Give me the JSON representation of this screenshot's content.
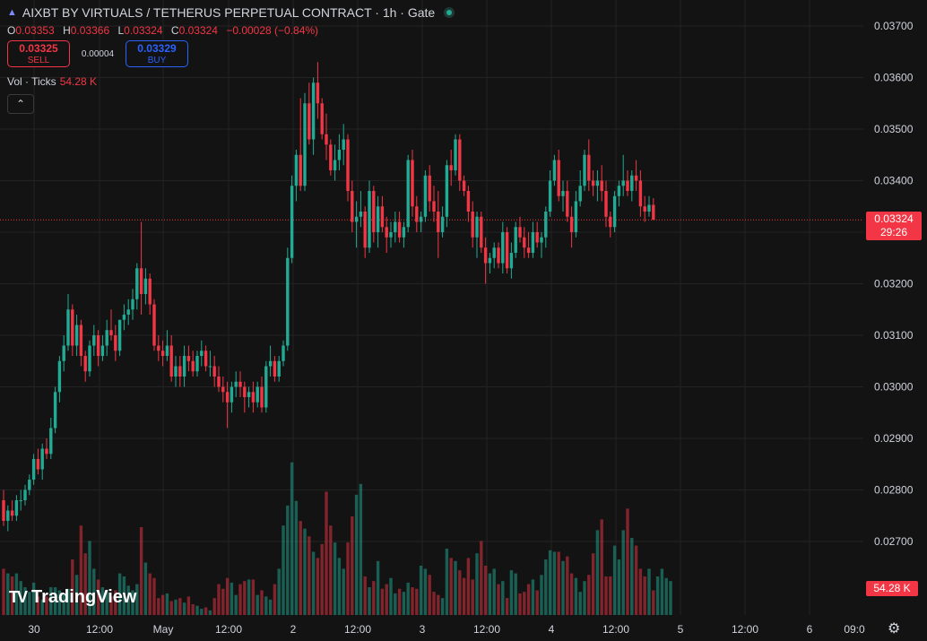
{
  "header": {
    "symbol_title": "AIXBT BY VIRTUALS / TETHERUS PERPETUAL CONTRACT · 1h · Gate",
    "ohlc": {
      "o_label": "O",
      "o": "0.03353",
      "h_label": "H",
      "h": "0.03366",
      "l_label": "L",
      "l": "0.03324",
      "c_label": "C",
      "c": "0.03324",
      "change": "−0.00028 (−0.84%)"
    },
    "sell_price": "0.03325",
    "sell_label": "SELL",
    "spread": "0.00004",
    "buy_price": "0.03329",
    "buy_label": "BUY",
    "volume_label": "Vol · Ticks",
    "volume_value": "54.28 K"
  },
  "price_badge": {
    "price": "0.03324",
    "countdown": "29:26"
  },
  "volume_badge": "54.28 K",
  "watermark": {
    "logo": "TV",
    "text": "TradingView"
  },
  "colors": {
    "up": "#22ab94",
    "down": "#f23645",
    "background": "#131313",
    "grid": "#232323",
    "current_line": "#f23645"
  },
  "icons": {
    "status": "live-dot-icon",
    "collapse": "chevron-up-icon",
    "settings": "gear-icon"
  },
  "chart_data": {
    "type": "candlestick",
    "y_axis": {
      "min": 0.0266,
      "max": 0.0371,
      "ticks": [
        "0.03700",
        "0.03600",
        "0.03500",
        "0.03400",
        "0.03300",
        "0.03200",
        "0.03100",
        "0.03000",
        "0.02900",
        "0.02800",
        "0.02700"
      ]
    },
    "x_axis": {
      "ticks": [
        "30",
        "12:00",
        "May",
        "12:00",
        "2",
        "12:00",
        "3",
        "12:00",
        "4",
        "12:00",
        "5",
        "12:00",
        "6",
        "09:0"
      ]
    },
    "current_price": 0.03324,
    "candles_ohlc": [
      [
        0.0278,
        0.028,
        0.0273,
        0.0274
      ],
      [
        0.0274,
        0.0277,
        0.0272,
        0.0276
      ],
      [
        0.0276,
        0.0278,
        0.0274,
        0.0275
      ],
      [
        0.0275,
        0.0279,
        0.0274,
        0.0278
      ],
      [
        0.0278,
        0.028,
        0.0276,
        0.0278
      ],
      [
        0.0278,
        0.0281,
        0.0277,
        0.028
      ],
      [
        0.028,
        0.0283,
        0.0279,
        0.0282
      ],
      [
        0.0282,
        0.0287,
        0.0281,
        0.0286
      ],
      [
        0.0286,
        0.0288,
        0.0283,
        0.0284
      ],
      [
        0.0284,
        0.0289,
        0.0282,
        0.0288
      ],
      [
        0.0288,
        0.029,
        0.0286,
        0.0287
      ],
      [
        0.0287,
        0.0294,
        0.0286,
        0.0292
      ],
      [
        0.0292,
        0.03,
        0.0291,
        0.0299
      ],
      [
        0.0299,
        0.0306,
        0.0297,
        0.0305
      ],
      [
        0.0305,
        0.031,
        0.0303,
        0.0308
      ],
      [
        0.0308,
        0.0318,
        0.0307,
        0.0315
      ],
      [
        0.0315,
        0.0316,
        0.0306,
        0.0308
      ],
      [
        0.0308,
        0.0314,
        0.0306,
        0.0312
      ],
      [
        0.0312,
        0.0313,
        0.0304,
        0.0306
      ],
      [
        0.0306,
        0.0307,
        0.0301,
        0.0303
      ],
      [
        0.0303,
        0.0309,
        0.0302,
        0.0308
      ],
      [
        0.0308,
        0.0312,
        0.0306,
        0.031
      ],
      [
        0.031,
        0.0311,
        0.0304,
        0.0306
      ],
      [
        0.0306,
        0.031,
        0.0305,
        0.0308
      ],
      [
        0.0308,
        0.0313,
        0.0306,
        0.0311
      ],
      [
        0.0311,
        0.0315,
        0.0309,
        0.031
      ],
      [
        0.031,
        0.0312,
        0.0305,
        0.0307
      ],
      [
        0.0307,
        0.0313,
        0.0306,
        0.0313
      ],
      [
        0.0313,
        0.0316,
        0.0311,
        0.0314
      ],
      [
        0.0314,
        0.0317,
        0.0312,
        0.0315
      ],
      [
        0.0315,
        0.0319,
        0.0313,
        0.0317
      ],
      [
        0.0317,
        0.0324,
        0.0315,
        0.0323
      ],
      [
        0.0323,
        0.0332,
        0.0314,
        0.0318
      ],
      [
        0.0318,
        0.0323,
        0.0316,
        0.0321
      ],
      [
        0.0321,
        0.0322,
        0.0314,
        0.0316
      ],
      [
        0.0316,
        0.0317,
        0.0307,
        0.0308
      ],
      [
        0.0308,
        0.031,
        0.0305,
        0.0307
      ],
      [
        0.0307,
        0.0309,
        0.0304,
        0.0306
      ],
      [
        0.0306,
        0.0311,
        0.0305,
        0.0308
      ],
      [
        0.0308,
        0.031,
        0.0301,
        0.0302
      ],
      [
        0.0302,
        0.0306,
        0.03,
        0.0304
      ],
      [
        0.0304,
        0.0306,
        0.03,
        0.0302
      ],
      [
        0.0302,
        0.0308,
        0.03,
        0.0306
      ],
      [
        0.0306,
        0.0308,
        0.0303,
        0.0305
      ],
      [
        0.0305,
        0.0307,
        0.0302,
        0.0303
      ],
      [
        0.0303,
        0.0307,
        0.0302,
        0.0306
      ],
      [
        0.0306,
        0.0309,
        0.0304,
        0.0307
      ],
      [
        0.0307,
        0.0308,
        0.0303,
        0.0304
      ],
      [
        0.0304,
        0.0307,
        0.0302,
        0.0304
      ],
      [
        0.0304,
        0.0306,
        0.03,
        0.0302
      ],
      [
        0.0302,
        0.0304,
        0.0299,
        0.03
      ],
      [
        0.03,
        0.0302,
        0.0297,
        0.0299
      ],
      [
        0.0299,
        0.0301,
        0.0292,
        0.0297
      ],
      [
        0.0297,
        0.0301,
        0.0295,
        0.03
      ],
      [
        0.03,
        0.0303,
        0.0298,
        0.0301
      ],
      [
        0.0301,
        0.0303,
        0.0298,
        0.03
      ],
      [
        0.03,
        0.0301,
        0.0295,
        0.0298
      ],
      [
        0.0298,
        0.03,
        0.0296,
        0.0299
      ],
      [
        0.0299,
        0.0301,
        0.0295,
        0.0297
      ],
      [
        0.0297,
        0.0301,
        0.0296,
        0.03
      ],
      [
        0.03,
        0.0302,
        0.0295,
        0.0296
      ],
      [
        0.0296,
        0.0305,
        0.0295,
        0.0304
      ],
      [
        0.0304,
        0.0308,
        0.0302,
        0.0305
      ],
      [
        0.0305,
        0.0306,
        0.0301,
        0.0302
      ],
      [
        0.0302,
        0.0306,
        0.0301,
        0.0305
      ],
      [
        0.0305,
        0.0309,
        0.0304,
        0.0308
      ],
      [
        0.0308,
        0.0327,
        0.0307,
        0.0325
      ],
      [
        0.0325,
        0.0341,
        0.0324,
        0.0339
      ],
      [
        0.0339,
        0.0346,
        0.0336,
        0.0345
      ],
      [
        0.0345,
        0.0356,
        0.0338,
        0.0339
      ],
      [
        0.0339,
        0.0357,
        0.0338,
        0.0355
      ],
      [
        0.0355,
        0.0359,
        0.0347,
        0.0348
      ],
      [
        0.0348,
        0.036,
        0.0345,
        0.0359
      ],
      [
        0.0359,
        0.0363,
        0.0352,
        0.0355
      ],
      [
        0.0355,
        0.0356,
        0.0348,
        0.0349
      ],
      [
        0.0349,
        0.0353,
        0.0344,
        0.0347
      ],
      [
        0.0347,
        0.0348,
        0.0341,
        0.0342
      ],
      [
        0.0342,
        0.0347,
        0.034,
        0.0344
      ],
      [
        0.0344,
        0.0349,
        0.0342,
        0.0346
      ],
      [
        0.0346,
        0.0351,
        0.0343,
        0.0348
      ],
      [
        0.0348,
        0.0349,
        0.0336,
        0.0338
      ],
      [
        0.0338,
        0.034,
        0.033,
        0.0332
      ],
      [
        0.0332,
        0.0336,
        0.0327,
        0.0333
      ],
      [
        0.0333,
        0.0338,
        0.0331,
        0.0334
      ],
      [
        0.0334,
        0.0335,
        0.0325,
        0.0327
      ],
      [
        0.0327,
        0.034,
        0.0326,
        0.0338
      ],
      [
        0.0338,
        0.0339,
        0.0328,
        0.033
      ],
      [
        0.033,
        0.0337,
        0.0327,
        0.0335
      ],
      [
        0.0335,
        0.0337,
        0.033,
        0.0331
      ],
      [
        0.0331,
        0.0333,
        0.0326,
        0.0329
      ],
      [
        0.0329,
        0.0332,
        0.0327,
        0.033
      ],
      [
        0.033,
        0.0334,
        0.0328,
        0.0332
      ],
      [
        0.0332,
        0.0334,
        0.0328,
        0.0329
      ],
      [
        0.0329,
        0.0332,
        0.0327,
        0.0331
      ],
      [
        0.0331,
        0.0345,
        0.033,
        0.0344
      ],
      [
        0.0344,
        0.0346,
        0.0333,
        0.0335
      ],
      [
        0.0335,
        0.0337,
        0.033,
        0.0332
      ],
      [
        0.0332,
        0.0334,
        0.033,
        0.0333
      ],
      [
        0.0333,
        0.0342,
        0.0332,
        0.0341
      ],
      [
        0.0341,
        0.0343,
        0.0334,
        0.0336
      ],
      [
        0.0336,
        0.0339,
        0.0332,
        0.0334
      ],
      [
        0.0334,
        0.0338,
        0.0325,
        0.033
      ],
      [
        0.033,
        0.0335,
        0.0329,
        0.0333
      ],
      [
        0.0333,
        0.0344,
        0.0331,
        0.0343
      ],
      [
        0.0343,
        0.0346,
        0.0339,
        0.0342
      ],
      [
        0.0342,
        0.0349,
        0.0341,
        0.0348
      ],
      [
        0.0348,
        0.0349,
        0.0338,
        0.034
      ],
      [
        0.034,
        0.0341,
        0.0337,
        0.0338
      ],
      [
        0.0338,
        0.0339,
        0.0332,
        0.0334
      ],
      [
        0.0334,
        0.0336,
        0.0327,
        0.0329
      ],
      [
        0.0329,
        0.0334,
        0.0325,
        0.0333
      ],
      [
        0.0333,
        0.0334,
        0.0326,
        0.0327
      ],
      [
        0.0327,
        0.0329,
        0.032,
        0.0324
      ],
      [
        0.0324,
        0.0326,
        0.0322,
        0.0325
      ],
      [
        0.0325,
        0.0328,
        0.0323,
        0.0327
      ],
      [
        0.0327,
        0.0328,
        0.0323,
        0.0324
      ],
      [
        0.0324,
        0.0332,
        0.0322,
        0.033
      ],
      [
        0.033,
        0.0331,
        0.0322,
        0.0323
      ],
      [
        0.0323,
        0.0328,
        0.0321,
        0.0326
      ],
      [
        0.0326,
        0.0332,
        0.0325,
        0.0331
      ],
      [
        0.0331,
        0.0333,
        0.0328,
        0.0329
      ],
      [
        0.0329,
        0.0331,
        0.0325,
        0.0327
      ],
      [
        0.0327,
        0.033,
        0.0325,
        0.0326
      ],
      [
        0.0326,
        0.0332,
        0.0325,
        0.033
      ],
      [
        0.033,
        0.0332,
        0.0327,
        0.0328
      ],
      [
        0.0328,
        0.033,
        0.0325,
        0.0329
      ],
      [
        0.0329,
        0.0335,
        0.0327,
        0.0334
      ],
      [
        0.0334,
        0.0342,
        0.0333,
        0.034
      ],
      [
        0.034,
        0.0345,
        0.0339,
        0.0344
      ],
      [
        0.0344,
        0.0346,
        0.0336,
        0.0337
      ],
      [
        0.0337,
        0.034,
        0.0334,
        0.0338
      ],
      [
        0.0338,
        0.034,
        0.0332,
        0.0333
      ],
      [
        0.0333,
        0.0335,
        0.0327,
        0.033
      ],
      [
        0.033,
        0.0338,
        0.0329,
        0.0336
      ],
      [
        0.0336,
        0.0342,
        0.0335,
        0.0339
      ],
      [
        0.0339,
        0.0346,
        0.0338,
        0.0345
      ],
      [
        0.0345,
        0.0348,
        0.0338,
        0.034
      ],
      [
        0.034,
        0.0342,
        0.0337,
        0.0339
      ],
      [
        0.0339,
        0.0342,
        0.0336,
        0.034
      ],
      [
        0.034,
        0.0343,
        0.0336,
        0.0338
      ],
      [
        0.0338,
        0.034,
        0.0331,
        0.0333
      ],
      [
        0.0333,
        0.0334,
        0.0329,
        0.0331
      ],
      [
        0.0331,
        0.0338,
        0.033,
        0.0337
      ],
      [
        0.0337,
        0.034,
        0.0335,
        0.0339
      ],
      [
        0.0339,
        0.0345,
        0.0337,
        0.034
      ],
      [
        0.034,
        0.0342,
        0.0337,
        0.0338
      ],
      [
        0.0338,
        0.0342,
        0.0336,
        0.0341
      ],
      [
        0.0341,
        0.0344,
        0.0338,
        0.034
      ],
      [
        0.034,
        0.0342,
        0.0333,
        0.0335
      ],
      [
        0.0335,
        0.0337,
        0.0332,
        0.0334
      ],
      [
        0.0334,
        0.0337,
        0.0333,
        0.03353
      ],
      [
        0.03353,
        0.03366,
        0.03324,
        0.03324
      ]
    ],
    "volumes": [
      0.3,
      0.27,
      0.25,
      0.27,
      0.22,
      0.18,
      0.15,
      0.21,
      0.12,
      0.1,
      0.12,
      0.18,
      0.18,
      0.16,
      0.14,
      0.17,
      0.36,
      0.26,
      0.58,
      0.4,
      0.48,
      0.3,
      0.23,
      0.18,
      0.15,
      0.12,
      0.16,
      0.27,
      0.25,
      0.19,
      0.16,
      0.2,
      0.57,
      0.34,
      0.27,
      0.24,
      0.11,
      0.13,
      0.14,
      0.09,
      0.1,
      0.11,
      0.08,
      0.12,
      0.07,
      0.06,
      0.04,
      0.05,
      0.03,
      0.11,
      0.2,
      0.17,
      0.24,
      0.21,
      0.13,
      0.2,
      0.22,
      0.23,
      0.23,
      0.13,
      0.16,
      0.12,
      0.1,
      0.2,
      0.3,
      0.58,
      0.71,
      0.99,
      0.74,
      0.61,
      0.56,
      0.51,
      0.41,
      0.37,
      0.46,
      0.8,
      0.58,
      0.47,
      0.37,
      0.3,
      0.47,
      0.64,
      0.78,
      0.85,
      0.25,
      0.18,
      0.22,
      0.35,
      0.17,
      0.2,
      0.24,
      0.14,
      0.17,
      0.15,
      0.21,
      0.18,
      0.17,
      0.32,
      0.3,
      0.26,
      0.15,
      0.13,
      0.11,
      0.43,
      0.37,
      0.35,
      0.29,
      0.24,
      0.37,
      0.23,
      0.4,
      0.48,
      0.32,
      0.27,
      0.3,
      0.2,
      0.22,
      0.11,
      0.29,
      0.27,
      0.14,
      0.15,
      0.2,
      0.23,
      0.16,
      0.26,
      0.36,
      0.42,
      0.41,
      0.41,
      0.35,
      0.38,
      0.27,
      0.24,
      0.15,
      0.22,
      0.26,
      0.4,
      0.55,
      0.62,
      0.25,
      0.25,
      0.45,
      0.36,
      0.55,
      0.69,
      0.5,
      0.45,
      0.3,
      0.25,
      0.3,
      0.16,
      0.25,
      0.3,
      0.24,
      0.22
    ]
  }
}
